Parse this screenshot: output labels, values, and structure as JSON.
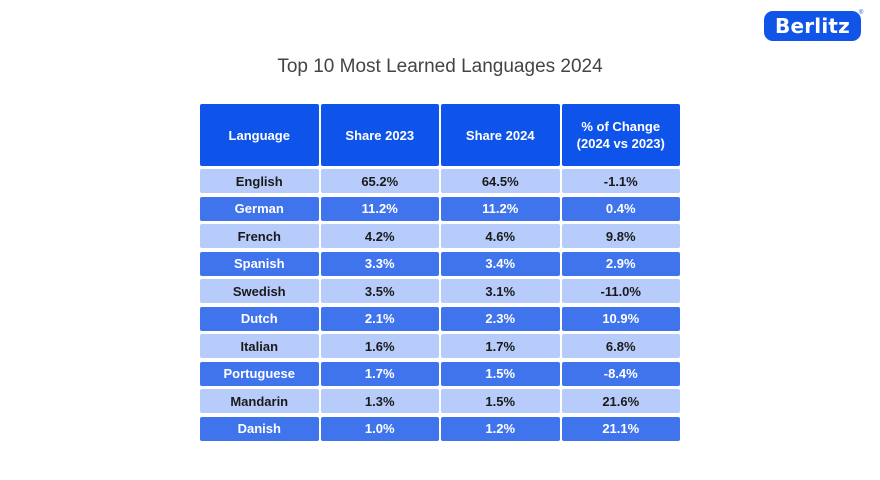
{
  "brand": {
    "name": "Berlitz",
    "reg": "®"
  },
  "colors": {
    "header": "#0f54ea",
    "row_light": "#b7ccfb",
    "row_dark": "#3f74ed"
  },
  "chart_data": {
    "type": "table",
    "title": "Top 10 Most Learned Languages 2024",
    "columns": [
      "Language",
      "Share 2023",
      "Share 2024",
      "% of Change|(2024 vs 2023)"
    ],
    "rows": [
      [
        "English",
        "65.2%",
        "64.5%",
        "-1.1%"
      ],
      [
        "German",
        "11.2%",
        "11.2%",
        "0.4%"
      ],
      [
        "French",
        "4.2%",
        "4.6%",
        "9.8%"
      ],
      [
        "Spanish",
        "3.3%",
        "3.4%",
        "2.9%"
      ],
      [
        "Swedish",
        "3.5%",
        "3.1%",
        "-11.0%"
      ],
      [
        "Dutch",
        "2.1%",
        "2.3%",
        "10.9%"
      ],
      [
        "Italian",
        "1.6%",
        "1.7%",
        "6.8%"
      ],
      [
        "Portuguese",
        "1.7%",
        "1.5%",
        "-8.4%"
      ],
      [
        "Mandarin",
        "1.3%",
        "1.5%",
        "21.6%"
      ],
      [
        "Danish",
        "1.0%",
        "1.2%",
        "21.1%"
      ]
    ]
  }
}
